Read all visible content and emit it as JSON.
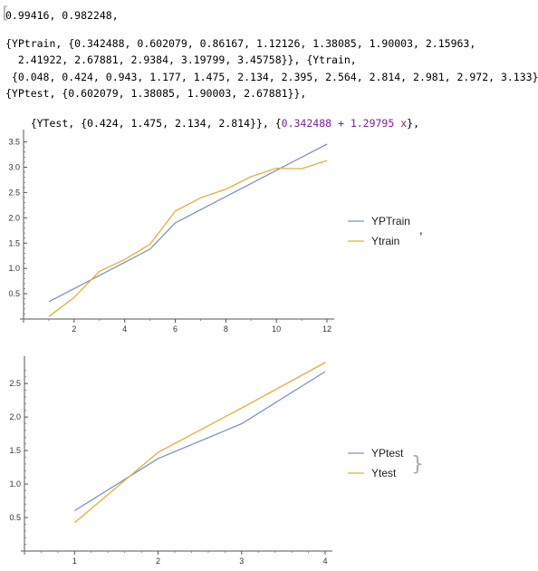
{
  "notebook": {
    "lines": [
      "0.99416, 0.982248,",
      "{YPtrain, {0.342488, 0.602079, 0.86167, 1.12126, 1.38085, 1.90003, 2.15963,",
      "  2.41922, 2.67881, 2.9384, 3.19799, 3.45758}}, {Ytrain,",
      " {0.048, 0.424, 0.943, 1.177, 1.475, 2.134, 2.395, 2.564, 2.814, 2.981, 2.972, 3.133}},",
      "{YPtest, {0.602079, 1.38085, 1.90003, 2.67881}},",
      "{YTest, {0.424, 1.475, 2.134, 2.814}}, {"
    ],
    "fit_expression": "0.342488 + 1.29795 x",
    "line6_tail": "},",
    "separator_comma": ","
  },
  "chart_data": [
    {
      "type": "line",
      "x": [
        1,
        2,
        3,
        4,
        5,
        6,
        7,
        8,
        9,
        10,
        11,
        12
      ],
      "series": [
        {
          "name": "YPTrain",
          "color": "#7a92c9",
          "values": [
            0.342488,
            0.602079,
            0.86167,
            1.12126,
            1.38085,
            1.90003,
            2.15963,
            2.41922,
            2.67881,
            2.9384,
            3.19799,
            3.45758
          ]
        },
        {
          "name": "Ytrain",
          "color": "#e6ad35",
          "values": [
            0.048,
            0.424,
            0.943,
            1.177,
            1.475,
            2.134,
            2.395,
            2.564,
            2.814,
            2.981,
            2.972,
            3.133
          ]
        }
      ],
      "xlim": [
        0,
        12
      ],
      "ylim": [
        0,
        3.6
      ],
      "xticks": [
        2,
        4,
        6,
        8,
        10,
        12
      ],
      "yticks": [
        0.5,
        1.0,
        1.5,
        2.0,
        2.5,
        3.0,
        3.5
      ],
      "ytick_labels": [
        "0.5",
        "1.0",
        "1.5",
        "2.0",
        "2.5",
        "3.0",
        "3.5"
      ],
      "legend_position": "right",
      "grid": false
    },
    {
      "type": "line",
      "x": [
        1,
        2,
        3,
        4
      ],
      "series": [
        {
          "name": "YPtest",
          "color": "#7a92c9",
          "values": [
            0.602079,
            1.38085,
            1.90003,
            2.67881
          ]
        },
        {
          "name": "Ytest",
          "color": "#e6ad35",
          "values": [
            0.424,
            1.475,
            2.134,
            2.814
          ]
        }
      ],
      "xlim": [
        0.4,
        4
      ],
      "ylim": [
        0,
        2.8
      ],
      "xticks": [
        1,
        2,
        3,
        4
      ],
      "yticks": [
        0.5,
        1.0,
        1.5,
        2.0,
        2.5
      ],
      "ytick_labels": [
        "0.5",
        "1.0",
        "1.5",
        "2.0",
        "2.5"
      ],
      "legend_position": "right",
      "grid": false
    }
  ]
}
